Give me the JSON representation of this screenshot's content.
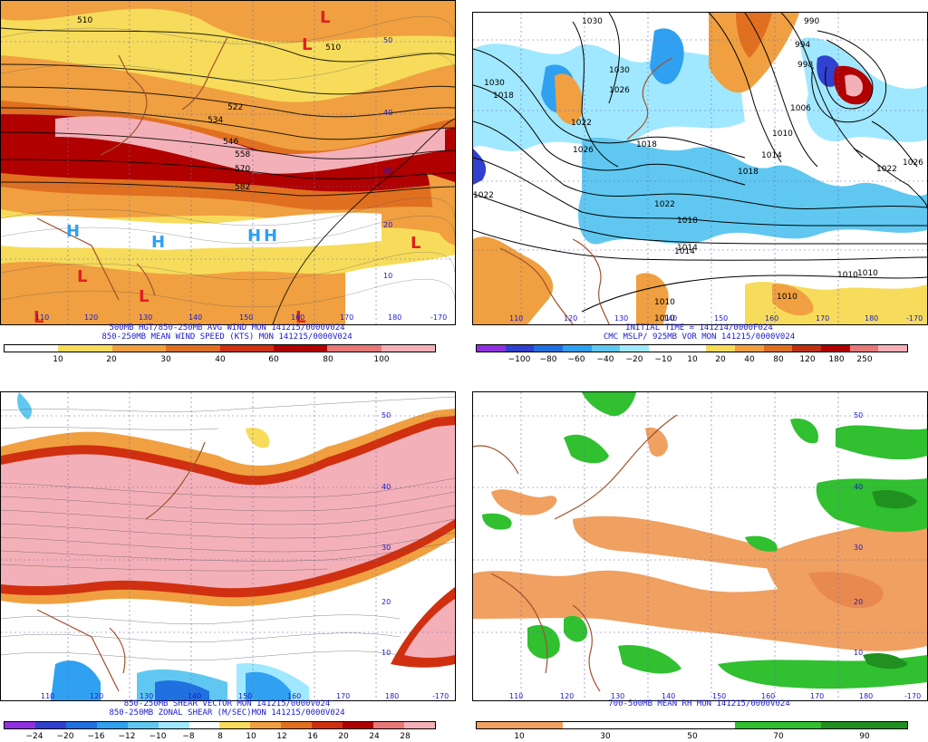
{
  "panels": [
    {
      "id": "wind",
      "caption_lines": [
        "500MB HGT/850-250MB AVG WIND MON 141215/0000V024",
        "850-250MB MEAN WIND SPEED (KTS) MON 141215/0000V024"
      ],
      "colorbar": {
        "colors": [
          "#ffffff",
          "#f6dc5a",
          "#f0a040",
          "#e07020",
          "#d03010",
          "#b00000",
          "#e87878",
          "#f4b0b8"
        ],
        "ticks": [
          "10",
          "20",
          "30",
          "40",
          "60",
          "80",
          "100"
        ]
      },
      "lon_labels": [
        "110",
        "120",
        "130",
        "140",
        "150",
        "160",
        "170",
        "180",
        "-170"
      ],
      "lat_labels": [
        "50",
        "40",
        "30",
        "20",
        "10"
      ],
      "contour_labels": [
        "510",
        "510",
        "522",
        "534",
        "546",
        "558",
        "570",
        "582"
      ],
      "lows": [
        "L",
        "L",
        "L",
        "L",
        "L",
        "L",
        "L"
      ],
      "highs": [
        "H",
        "H",
        "H",
        "H"
      ]
    },
    {
      "id": "mslp",
      "caption_lines": [
        "INITIAL TIME = 141214/0000F024",
        "CMC MSLP/ 925MB VOR MON 141215/0000V024"
      ],
      "colorbar": {
        "colors": [
          "#9030e0",
          "#3040d0",
          "#2070e0",
          "#30a0f0",
          "#60c8f0",
          "#a0e8ff",
          "#ffffff",
          "#ffffff",
          "#f6dc5a",
          "#f0a040",
          "#e07020",
          "#c03010",
          "#b00000",
          "#e87878",
          "#f4b0b8"
        ],
        "ticks": [
          "−100",
          "−80",
          "−60",
          "−40",
          "−20",
          "−10",
          "10",
          "20",
          "40",
          "80",
          "120",
          "180",
          "250"
        ]
      },
      "lon_labels": [
        "110",
        "120",
        "130",
        "140",
        "150",
        "160",
        "170",
        "180",
        "-170"
      ],
      "isobar_labels": [
        "1030",
        "1030",
        "1026",
        "1022",
        "1026",
        "1030",
        "1022",
        "1018",
        "1014",
        "1010",
        "1010",
        "1018",
        "1022",
        "1026",
        "990",
        "994",
        "998",
        "1006",
        "1010",
        "1014",
        "1018",
        "1022",
        "1018",
        "1014",
        "1010",
        "1010",
        "1010"
      ]
    },
    {
      "id": "shear",
      "caption_lines": [
        "850-250MB SHEAR VECTOR MON 141215/0000V024",
        "850-250MB ZONAL SHEAR (M/SEC)MON 141215/0000V024"
      ],
      "colorbar": {
        "colors": [
          "#9030e0",
          "#3040d0",
          "#2070e0",
          "#30a0f0",
          "#60c8f0",
          "#a0e8ff",
          "#ffffff",
          "#f6dc5a",
          "#f0a040",
          "#e07020",
          "#d03010",
          "#b00000",
          "#e87878",
          "#f4b0b8"
        ],
        "ticks": [
          "−24",
          "−20",
          "−16",
          "−12",
          "−10",
          "−8",
          "8",
          "10",
          "12",
          "16",
          "20",
          "24",
          "28"
        ]
      },
      "lon_labels": [
        "110",
        "120",
        "130",
        "140",
        "150",
        "160",
        "170",
        "180",
        "-170"
      ],
      "lat_labels": [
        "50",
        "40",
        "30",
        "20",
        "10"
      ]
    },
    {
      "id": "rh",
      "caption_lines": [
        "700-500MB MEAN RH MON 141215/0000V024"
      ],
      "colorbar": {
        "colors": [
          "#f0a060",
          "#ffffff",
          "#ffffff",
          "#30c030",
          "#209020"
        ],
        "ticks": [
          "10",
          "30",
          "50",
          "70",
          "90"
        ]
      },
      "lon_labels": [
        "110",
        "120",
        "130",
        "140",
        "150",
        "160",
        "170",
        "180",
        "-170"
      ],
      "lat_labels": [
        "50",
        "40",
        "30",
        "20",
        "10"
      ]
    }
  ]
}
